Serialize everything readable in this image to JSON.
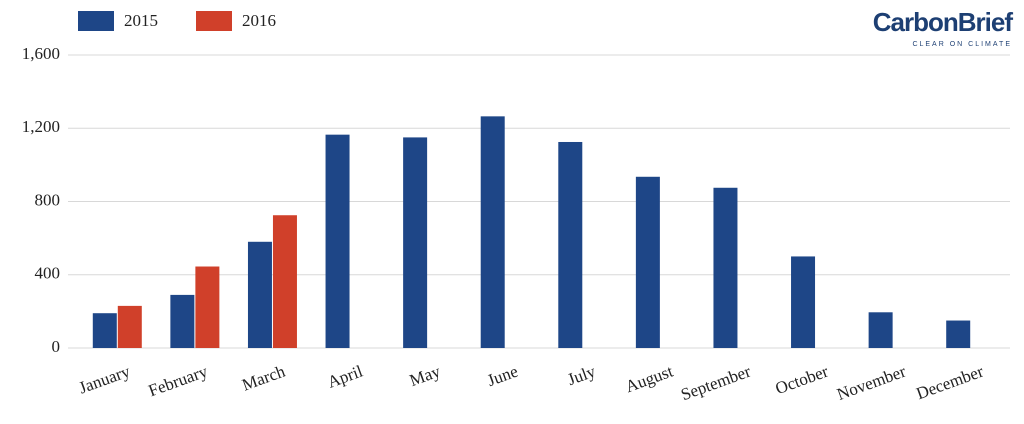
{
  "logo": {
    "name": "CarbonBrief",
    "tagline": "CLEAR ON CLIMATE"
  },
  "chart_data": {
    "type": "bar",
    "categories": [
      "January",
      "February",
      "March",
      "April",
      "May",
      "June",
      "July",
      "August",
      "September",
      "October",
      "November",
      "December"
    ],
    "series": [
      {
        "name": "2015",
        "color": "#1e4687",
        "values": [
          190,
          290,
          580,
          1165,
          1150,
          1265,
          1125,
          935,
          875,
          500,
          195,
          150
        ]
      },
      {
        "name": "2016",
        "color": "#d0402a",
        "values": [
          230,
          445,
          725,
          null,
          null,
          null,
          null,
          null,
          null,
          null,
          null,
          null
        ]
      }
    ],
    "ylim": [
      0,
      1600
    ],
    "yticks": [
      0,
      400,
      800,
      {
        "value": 1200,
        "label": "1,200"
      },
      {
        "value": 1600,
        "label": "1,600"
      }
    ],
    "grid": true,
    "legend": "top-left"
  }
}
